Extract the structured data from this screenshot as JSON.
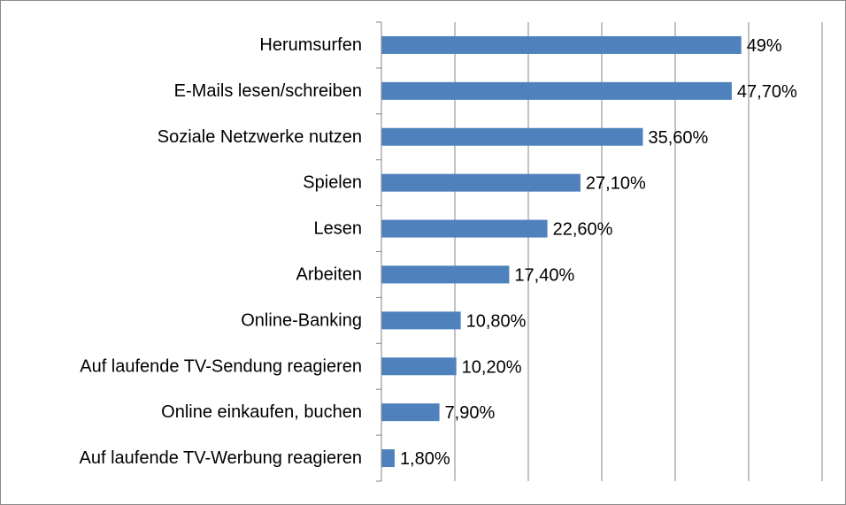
{
  "chart_data": {
    "type": "bar",
    "orientation": "horizontal",
    "title": "",
    "xlabel": "",
    "ylabel": "",
    "categories": [
      "Herumsurfen",
      "E-Mails lesen/schreiben",
      "Soziale Netzwerke nutzen",
      "Spielen",
      "Lesen",
      "Arbeiten",
      "Online-Banking",
      "Auf laufende TV-Sendung reagieren",
      "Online einkaufen, buchen",
      "Auf laufende TV-Werbung reagieren"
    ],
    "values": [
      49,
      47.7,
      35.6,
      27.1,
      22.6,
      17.4,
      10.8,
      10.2,
      7.9,
      1.8
    ],
    "value_labels": [
      "49%",
      "47,70%",
      "35,60%",
      "27,10%",
      "22,60%",
      "17,40%",
      "10,80%",
      "10,20%",
      "7,90%",
      "1,80%"
    ],
    "xlim": [
      0,
      60
    ],
    "major_gridlines": "vertical",
    "legend": "none",
    "bar_color": "#4F81BD",
    "gridline_color": "#868686"
  }
}
